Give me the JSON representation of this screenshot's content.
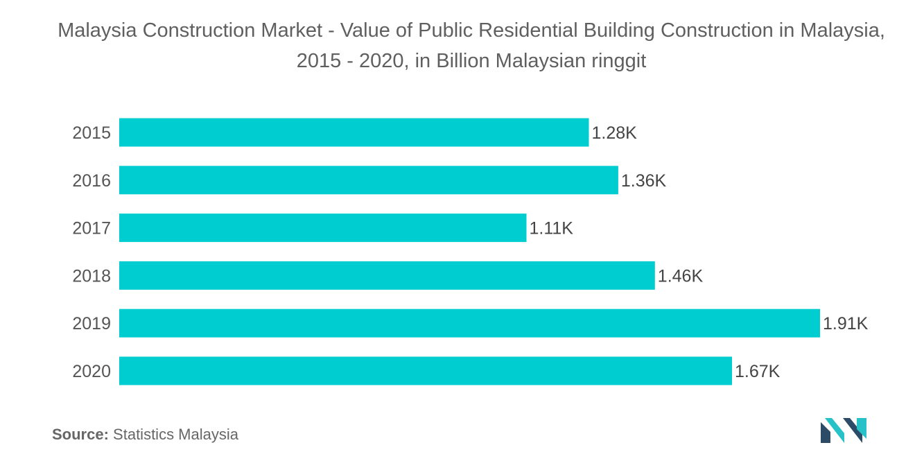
{
  "title": "Malaysia Construction Market - Value of Public Residential Building Construction in Malaysia, 2015 - 2020, in Billion Malaysian ringgit",
  "source": {
    "label": "Source:",
    "text": "Statistics Malaysia"
  },
  "colors": {
    "bar": "#00cdd0",
    "logo_dark": "#2c4b66",
    "logo_accent": "#27c1c8"
  },
  "logo_icon": "market-intelligence-logo-icon",
  "chart_data": {
    "type": "bar",
    "orientation": "horizontal",
    "categories": [
      "2015",
      "2016",
      "2017",
      "2018",
      "2019",
      "2020"
    ],
    "values": [
      1280,
      1360,
      1110,
      1460,
      1910,
      1670
    ],
    "data_labels": [
      "1.28K",
      "1.36K",
      "1.11K",
      "1.46K",
      "1.91K",
      "1.67K"
    ],
    "title": "Malaysia Construction Market - Value of Public Residential Building Construction in Malaysia, 2015 - 2020, in Billion Malaysian ringgit",
    "xlabel": "",
    "ylabel": "",
    "xlim": [
      0,
      1910
    ],
    "grid": false,
    "legend": "none"
  }
}
